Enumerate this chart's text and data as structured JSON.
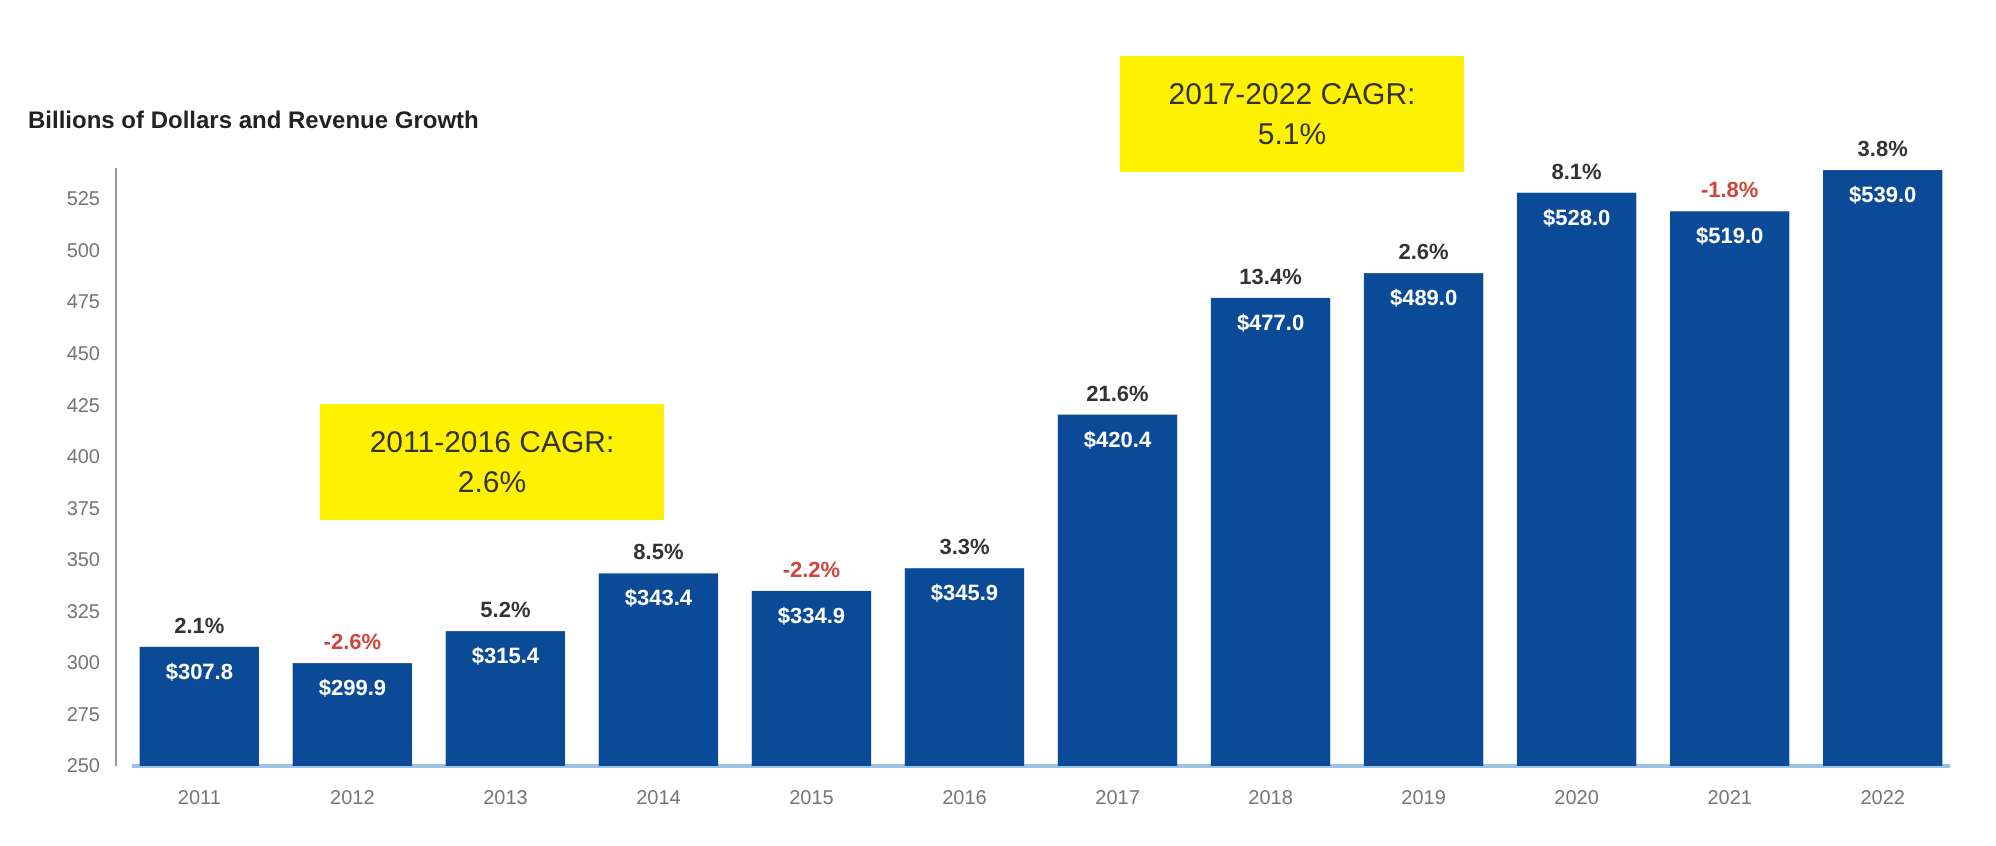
{
  "chart_data": {
    "type": "bar",
    "title": "Billions of Dollars and Revenue Growth",
    "categories": [
      "2011",
      "2012",
      "2013",
      "2014",
      "2015",
      "2016",
      "2017",
      "2018",
      "2019",
      "2020",
      "2021",
      "2022"
    ],
    "values": [
      307.8,
      299.9,
      315.4,
      343.4,
      334.9,
      345.9,
      420.4,
      477.0,
      489.0,
      528.0,
      519.0,
      539.0
    ],
    "value_labels": [
      "$307.8",
      "$299.9",
      "$315.4",
      "$343.4",
      "$334.9",
      "$345.9",
      "$420.4",
      "$477.0",
      "$489.0",
      "$528.0",
      "$519.0",
      "$539.0"
    ],
    "color": "#0b4a96",
    "ylim": [
      250,
      540
    ],
    "yticks": [
      250,
      275,
      300,
      325,
      350,
      375,
      400,
      425,
      450,
      475,
      500,
      525
    ],
    "grid": false,
    "annotations": [
      {
        "text": "2.1%",
        "x": "2011",
        "y": 307.8
      },
      {
        "text": "-2.6%",
        "x": "2012",
        "y": 299.9
      },
      {
        "text": "5.2%",
        "x": "2013",
        "y": 315.4
      },
      {
        "text": "8.5%",
        "x": "2014",
        "y": 343.4
      },
      {
        "text": "-2.2%",
        "x": "2015",
        "y": 334.9
      },
      {
        "text": "3.3%",
        "x": "2016",
        "y": 345.9
      },
      {
        "text": "21.6%",
        "x": "2017",
        "y": 420.4
      },
      {
        "text": "13.4%",
        "x": "2018",
        "y": 477.0
      },
      {
        "text": "2.6%",
        "x": "2019",
        "y": 489.0
      },
      {
        "text": "8.1%",
        "x": "2020",
        "y": 528.0
      },
      {
        "text": "-1.8%",
        "x": "2021",
        "y": 519.0
      },
      {
        "text": "3.8%",
        "x": "2022",
        "y": 539.0
      },
      "2011-2016 CAGR: 2.6%",
      "2017-2022 CAGR: 5.1%"
    ]
  }
}
